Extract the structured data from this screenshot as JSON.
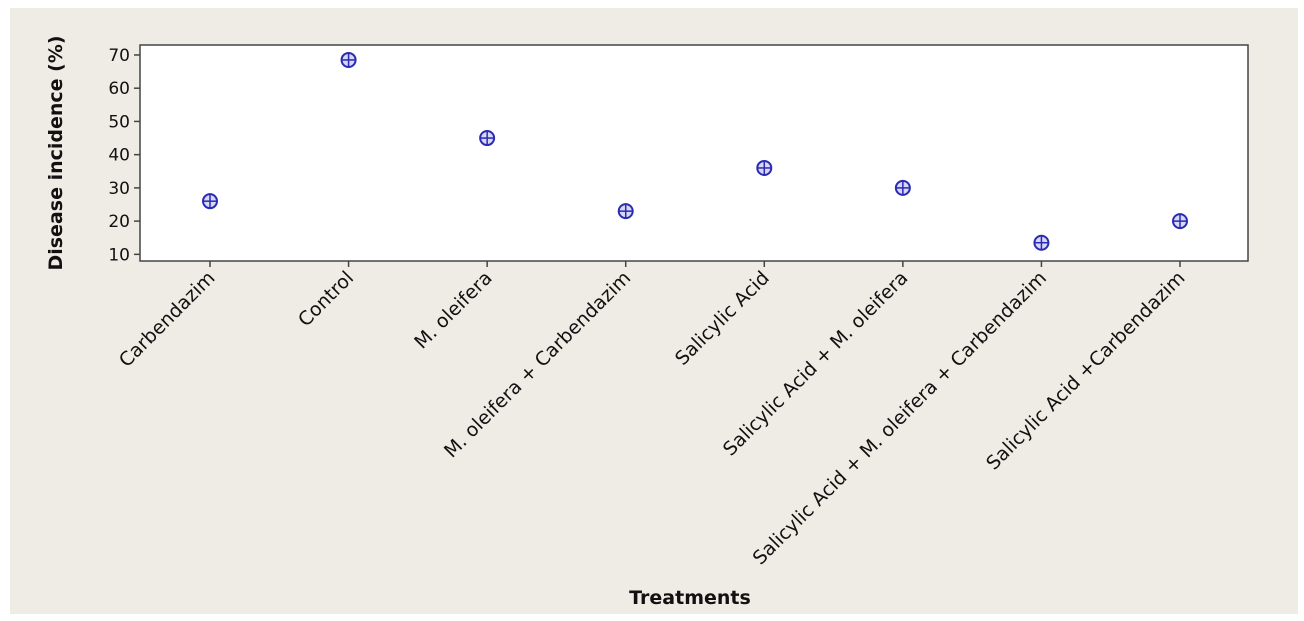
{
  "chart_data": {
    "type": "scatter",
    "title": "",
    "xlabel": "Treatments",
    "ylabel": "Disease incidence (%)",
    "categories": [
      "Carbendazim",
      "Control",
      "M. oleifera",
      "M. oleifera  + Carbendazim",
      "Salicylic Acid",
      "Salicylic Acid + M. oleifera",
      "Salicylic Acid + M. oleifera  + Carbendazim",
      "Salicylic Acid +Carbendazim"
    ],
    "values": [
      26,
      68.5,
      45,
      23,
      36,
      30,
      13.5,
      20
    ],
    "ylim": [
      8,
      73
    ],
    "yticks": [
      10,
      20,
      30,
      40,
      50,
      60,
      70
    ],
    "grid": false,
    "colors": {
      "marker": "#2a2ab4",
      "marker_fill": "#d8d8f4",
      "frame": "#444444",
      "figure_bg": "#efece5",
      "plot_bg": "#ffffff"
    }
  }
}
